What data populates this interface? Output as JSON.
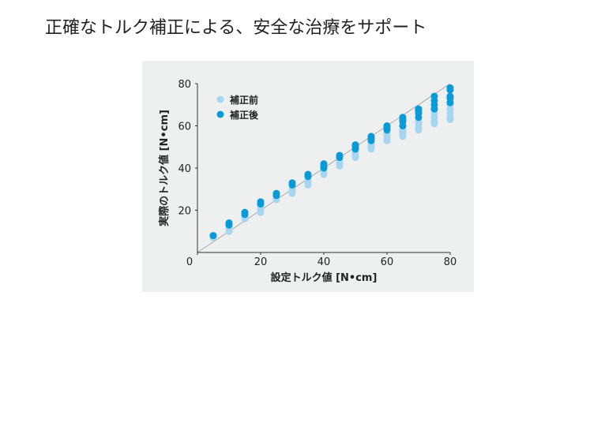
{
  "chart_data": {
    "type": "scatter",
    "title": "正確なトルク補正による、安全な治療をサポート",
    "x_label": "設定トルク値 [N•cm]",
    "y_label": "実際のトルク値 [N•cm]",
    "xlim": [
      0,
      80
    ],
    "ylim": [
      0,
      80
    ],
    "xticks": [
      0,
      20,
      40,
      60,
      80
    ],
    "yticks": [
      20,
      40,
      60,
      80
    ],
    "legend": "top-left",
    "series": [
      {
        "name": "補正前",
        "color": "#a6d6f2",
        "x": [
          5,
          5,
          10,
          10,
          10,
          15,
          15,
          20,
          20,
          20,
          20,
          25,
          25,
          30,
          30,
          30,
          35,
          35,
          35,
          40,
          40,
          45,
          45,
          45,
          50,
          50,
          50,
          55,
          55,
          55,
          55,
          60,
          60,
          60,
          60,
          65,
          65,
          65,
          65,
          70,
          70,
          70,
          70,
          75,
          75,
          75,
          75,
          80,
          80,
          80,
          80,
          80
        ],
        "values": [
          7,
          8,
          10,
          11,
          12,
          16,
          17,
          19,
          20,
          21,
          22,
          25,
          26,
          28,
          29,
          30,
          32,
          33,
          34,
          37,
          38,
          41,
          42,
          43,
          45,
          46,
          47,
          49,
          50,
          51,
          52,
          53,
          54,
          55,
          56,
          55,
          56,
          57,
          58,
          58,
          59,
          61,
          62,
          61,
          62,
          64,
          66,
          63,
          64,
          66,
          68,
          70
        ]
      },
      {
        "name": "補正後",
        "color": "#0a9ad8",
        "x": [
          5,
          10,
          10,
          15,
          15,
          20,
          20,
          25,
          25,
          30,
          30,
          35,
          35,
          40,
          40,
          40,
          45,
          45,
          50,
          50,
          50,
          55,
          55,
          55,
          60,
          60,
          60,
          65,
          65,
          65,
          65,
          70,
          70,
          70,
          70,
          75,
          75,
          75,
          75,
          80,
          80,
          80,
          80,
          80
        ],
        "values": [
          8,
          13,
          14,
          18,
          19,
          23,
          24,
          27,
          28,
          32,
          33,
          36,
          37,
          40,
          41,
          42,
          45,
          46,
          49,
          50,
          51,
          53,
          54,
          55,
          58,
          59,
          60,
          60,
          62,
          63,
          64,
          64,
          66,
          67,
          68,
          68,
          70,
          72,
          74,
          71,
          73,
          74,
          77,
          78
        ]
      }
    ]
  }
}
